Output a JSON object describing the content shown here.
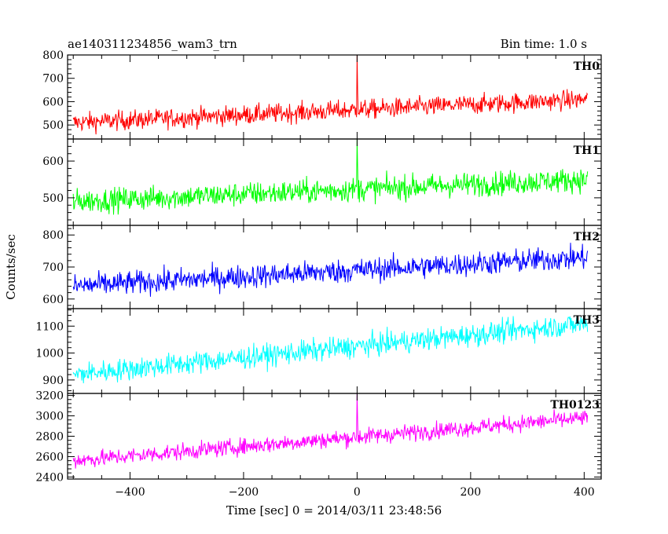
{
  "header": {
    "title": "ae140311234856_wam3_trn",
    "bin_time": "Bin time: 1.0 s"
  },
  "axes": {
    "xlabel": "Time [sec] 0 = 2014/03/11 23:48:56",
    "ylabel": "Counts/sec"
  },
  "chart_data": {
    "type": "line",
    "xlim": [
      -510,
      430
    ],
    "x_ticks": [
      -400,
      -200,
      0,
      200,
      400
    ],
    "x_tick_labels": [
      "−400",
      "−200",
      "0",
      "200",
      "400"
    ],
    "series_start_x": -500,
    "series_end_x": 406,
    "bin_time_s": 1.0,
    "panels": [
      {
        "name": "TH0",
        "color": "#ff0000",
        "ylim": [
          440,
          800
        ],
        "y_ticks": [
          500,
          600,
          700,
          800
        ],
        "trend_start": 510,
        "trend_end": 610,
        "noise": 28,
        "spike_at": 0,
        "spike_peak": 800
      },
      {
        "name": "TH1",
        "color": "#00ff00",
        "ylim": [
          425,
          660
        ],
        "y_ticks": [
          500,
          600
        ],
        "trend_start": 490,
        "trend_end": 550,
        "noise": 22,
        "spike_at": 0,
        "spike_peak": 660
      },
      {
        "name": "TH2",
        "color": "#0000ff",
        "ylim": [
          570,
          830
        ],
        "y_ticks": [
          600,
          700,
          800
        ],
        "trend_start": 640,
        "trend_end": 730,
        "noise": 25,
        "spike_at": null,
        "spike_peak": null
      },
      {
        "name": "TH3",
        "color": "#00ffff",
        "ylim": [
          850,
          1165
        ],
        "y_ticks": [
          900,
          1000,
          1100
        ],
        "trend_start": 920,
        "trend_end": 1110,
        "noise": 28,
        "spike_at": null,
        "spike_peak": null
      },
      {
        "name": "TH0123",
        "color": "#ff00ff",
        "ylim": [
          2380,
          3220
        ],
        "y_ticks": [
          2400,
          2600,
          2800,
          3000,
          3200
        ],
        "trend_start": 2560,
        "trend_end": 2980,
        "noise": 55,
        "spike_at": 0,
        "spike_peak": 3220
      }
    ]
  }
}
